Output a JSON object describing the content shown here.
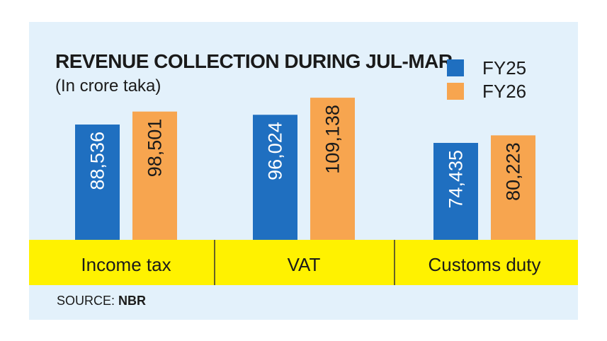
{
  "chart_data": {
    "type": "bar",
    "title": "REVENUE COLLECTION DURING JUL-MAR",
    "subtitle": "(In crore taka)",
    "categories": [
      "Income tax",
      "VAT",
      "Customs duty"
    ],
    "series": [
      {
        "name": "FY25",
        "color": "#1f6fc0",
        "values": [
          88536,
          96024,
          74435
        ],
        "labels": [
          "88,536",
          "96,024",
          "74,435"
        ]
      },
      {
        "name": "FY26",
        "color": "#f7a54f",
        "values": [
          98501,
          109138,
          80223
        ],
        "labels": [
          "98,501",
          "109,138",
          "80,223"
        ]
      }
    ],
    "ylim": [
      0,
      113000
    ],
    "grid": false,
    "legend": "top-right",
    "band_color": "#fff200",
    "panel_color": "#e3f1fb"
  },
  "source": {
    "prefix": "SOURCE: ",
    "name": "NBR"
  }
}
